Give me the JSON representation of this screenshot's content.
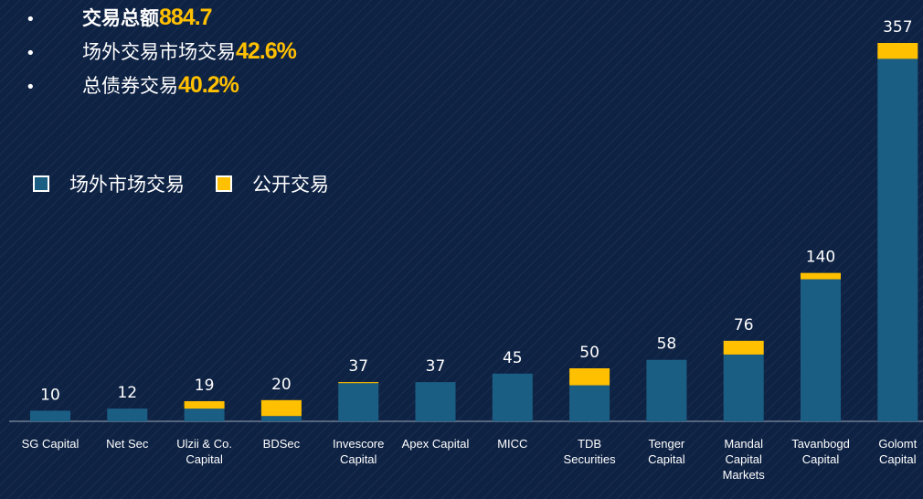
{
  "chart_data": {
    "type": "stacked_bar",
    "annotations": [
      {
        "text": "交易总额",
        "value": "884.7"
      },
      {
        "text": "场外交易市场交易",
        "value": "42.6%"
      },
      {
        "text": "总债券交易 ",
        "value": "40.2%"
      }
    ],
    "categories": [
      "SG Capital",
      "Net Sec",
      "Ulzii & Co. Capital",
      "BDSec",
      "Invescore Capital",
      "Apex Capital",
      "MICC",
      "TDB Securities",
      "Tenger Capital",
      "Mandal Capital Markets",
      "Tavanbogd Capital",
      "Golomt Capital"
    ],
    "series": [
      {
        "name": "场外市场交易",
        "color": "#1b5e84",
        "values": [
          10,
          12,
          12,
          5,
          36,
          37,
          45,
          34,
          58,
          63,
          134,
          342
        ]
      },
      {
        "name": "公开交易",
        "color": "#ffc000",
        "values": [
          0,
          0,
          7,
          15,
          1,
          0,
          0,
          16,
          0,
          13,
          6,
          15
        ]
      }
    ],
    "totals": [
      10,
      12,
      19,
      20,
      37,
      37,
      45,
      50,
      58,
      76,
      140,
      357
    ]
  }
}
